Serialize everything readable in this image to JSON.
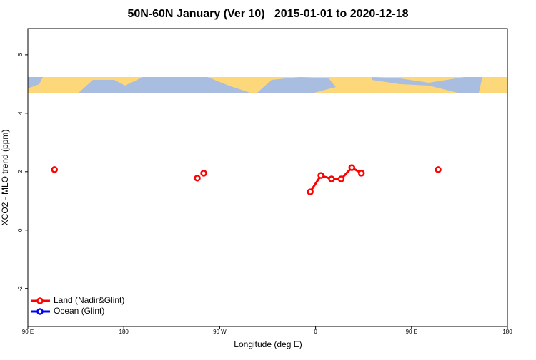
{
  "chart_data": {
    "type": "line",
    "title": "50N-60N January (Ver 10)   2015-01-01 to 2020-12-18",
    "x_label": "Longitude (deg E)",
    "y_label": "XCO2 - MLO trend (ppm)",
    "xlim": [
      90,
      540
    ],
    "xticks": [
      {
        "value": 90,
        "label": "90 E"
      },
      {
        "value": 180,
        "label": "180"
      },
      {
        "value": 270,
        "label": "90 W"
      },
      {
        "value": 360,
        "label": "0"
      },
      {
        "value": 450,
        "label": "90 E"
      },
      {
        "value": 540,
        "label": "180"
      }
    ],
    "ylim": [
      -3.3,
      6.9
    ],
    "yticks": [
      -2,
      0,
      2,
      4,
      6
    ],
    "legend": "bottom-left",
    "series": [
      {
        "name": "Land (Nadir&Glint)",
        "color": "#ff0000",
        "x": [
          115,
          null,
          249,
          null,
          255,
          null,
          355,
          365,
          375,
          384,
          394,
          403,
          null,
          475
        ],
        "values": [
          2.07,
          null,
          1.78,
          null,
          1.95,
          null,
          1.31,
          1.87,
          1.75,
          1.75,
          2.14,
          1.95,
          null,
          2.07
        ]
      },
      {
        "name": "Ocean (Glint)",
        "color": "#0000ff",
        "x": [],
        "values": []
      }
    ]
  }
}
